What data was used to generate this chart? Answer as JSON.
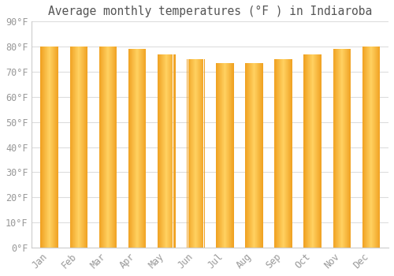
{
  "title": "Average monthly temperatures (°F ) in Indiaroba",
  "months": [
    "Jan",
    "Feb",
    "Mar",
    "Apr",
    "May",
    "Jun",
    "Jul",
    "Aug",
    "Sep",
    "Oct",
    "Nov",
    "Dec"
  ],
  "values": [
    80,
    80,
    80,
    79,
    77,
    75,
    73.5,
    73.5,
    75,
    77,
    79,
    80
  ],
  "background_color": "#FFFFFF",
  "plot_bg_color": "#FFFFFF",
  "grid_color": "#DDDDDD",
  "tick_label_color": "#999999",
  "title_color": "#555555",
  "ylim": [
    0,
    90
  ],
  "ytick_values": [
    0,
    10,
    20,
    30,
    40,
    50,
    60,
    70,
    80,
    90
  ],
  "title_fontsize": 10.5,
  "tick_fontsize": 8.5,
  "bar_width": 0.6,
  "bar_left_color": "#F0A020",
  "bar_center_color": "#FFD060",
  "bar_right_color": "#F0A020",
  "bar_edge_color": "#CC8800",
  "bar_edge_linewidth": 0.8
}
